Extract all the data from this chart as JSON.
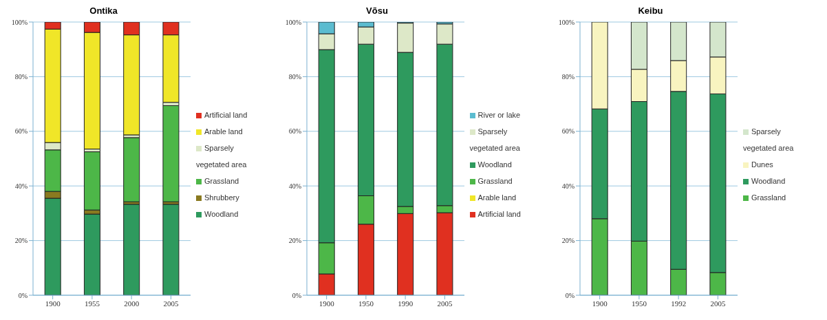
{
  "chart_data": [
    {
      "type": "bar",
      "title": "Ontika",
      "categories": [
        "1900",
        "1955",
        "2000",
        "2005"
      ],
      "stacked": true,
      "ylim": [
        0,
        100
      ],
      "yticks": [
        {
          "value": 0,
          "label": "0%"
        },
        {
          "value": 20,
          "label": "20%"
        },
        {
          "value": 40,
          "label": "40%"
        },
        {
          "value": 60,
          "label": "60%"
        },
        {
          "value": 80,
          "label": "80%"
        },
        {
          "value": 100,
          "label": "100%"
        }
      ],
      "grid": "y",
      "legend": "right",
      "series": [
        {
          "name": "Woodland",
          "color": "#2e9a5e",
          "values": [
            35.5,
            29.7,
            33.3,
            33.3
          ]
        },
        {
          "name": "Shrubbery",
          "color": "#8a7a20",
          "values": [
            2.5,
            1.5,
            0.9,
            0.9
          ]
        },
        {
          "name": "Grassland",
          "color": "#4db748",
          "values": [
            15.2,
            21.3,
            23.5,
            35.2
          ]
        },
        {
          "name": "Sparsely vegetated area",
          "color": "#dde8c8",
          "values": [
            2.7,
            1.0,
            1.0,
            1.2
          ]
        },
        {
          "name": "Arable land",
          "color": "#f0e628",
          "values": [
            41.5,
            42.7,
            36.6,
            24.7
          ]
        },
        {
          "name": "Artificial land",
          "color": "#e03020",
          "values": [
            2.6,
            3.8,
            4.7,
            4.7
          ]
        }
      ]
    },
    {
      "type": "bar",
      "title": "Võsu",
      "categories": [
        "1900",
        "1950",
        "1990",
        "2005"
      ],
      "stacked": true,
      "ylim": [
        0,
        100
      ],
      "yticks": [
        {
          "value": 0,
          "label": "0%"
        },
        {
          "value": 20,
          "label": "20%"
        },
        {
          "value": 40,
          "label": "40%"
        },
        {
          "value": 60,
          "label": "60%"
        },
        {
          "value": 80,
          "label": "80%"
        },
        {
          "value": 100,
          "label": "100%"
        }
      ],
      "grid": "y",
      "legend": "right",
      "series": [
        {
          "name": "Artificial land",
          "color": "#e03020",
          "values": [
            7.8,
            26.0,
            29.9,
            30.2
          ]
        },
        {
          "name": "Arable land",
          "color": "#f0e628",
          "values": [
            0,
            0,
            0,
            0
          ]
        },
        {
          "name": "Grassland",
          "color": "#4db748",
          "values": [
            11.4,
            10.4,
            2.6,
            2.6
          ]
        },
        {
          "name": "Woodland",
          "color": "#2e9a5e",
          "values": [
            70.7,
            55.5,
            56.4,
            59.1
          ]
        },
        {
          "name": "Sparsely vegetated area",
          "color": "#dde8c8",
          "values": [
            5.8,
            6.3,
            10.7,
            7.4
          ]
        },
        {
          "name": "River or lake",
          "color": "#5bbcd0",
          "values": [
            4.3,
            1.8,
            0.4,
            0.7
          ]
        }
      ]
    },
    {
      "type": "bar",
      "title": "Keibu",
      "categories": [
        "1900",
        "1950",
        "1992",
        "2005"
      ],
      "stacked": true,
      "ylim": [
        0,
        100
      ],
      "yticks": [
        {
          "value": 0,
          "label": "0%"
        },
        {
          "value": 20,
          "label": "20%"
        },
        {
          "value": 40,
          "label": "40%"
        },
        {
          "value": 60,
          "label": "60%"
        },
        {
          "value": 80,
          "label": "80%"
        },
        {
          "value": 100,
          "label": "100%"
        }
      ],
      "grid": "y",
      "legend": "right",
      "series": [
        {
          "name": "Grassland",
          "color": "#4db748",
          "values": [
            28.0,
            19.8,
            9.5,
            8.3
          ]
        },
        {
          "name": "Woodland",
          "color": "#2e9a5e",
          "values": [
            40.2,
            51.1,
            65.1,
            65.4
          ]
        },
        {
          "name": "Dunes",
          "color": "#f8f4c0",
          "values": [
            31.8,
            11.8,
            11.3,
            13.5
          ]
        },
        {
          "name": "Sparsely vegetated area",
          "color": "#d4e6cc",
          "values": [
            0,
            17.3,
            14.1,
            12.8
          ]
        }
      ]
    }
  ]
}
